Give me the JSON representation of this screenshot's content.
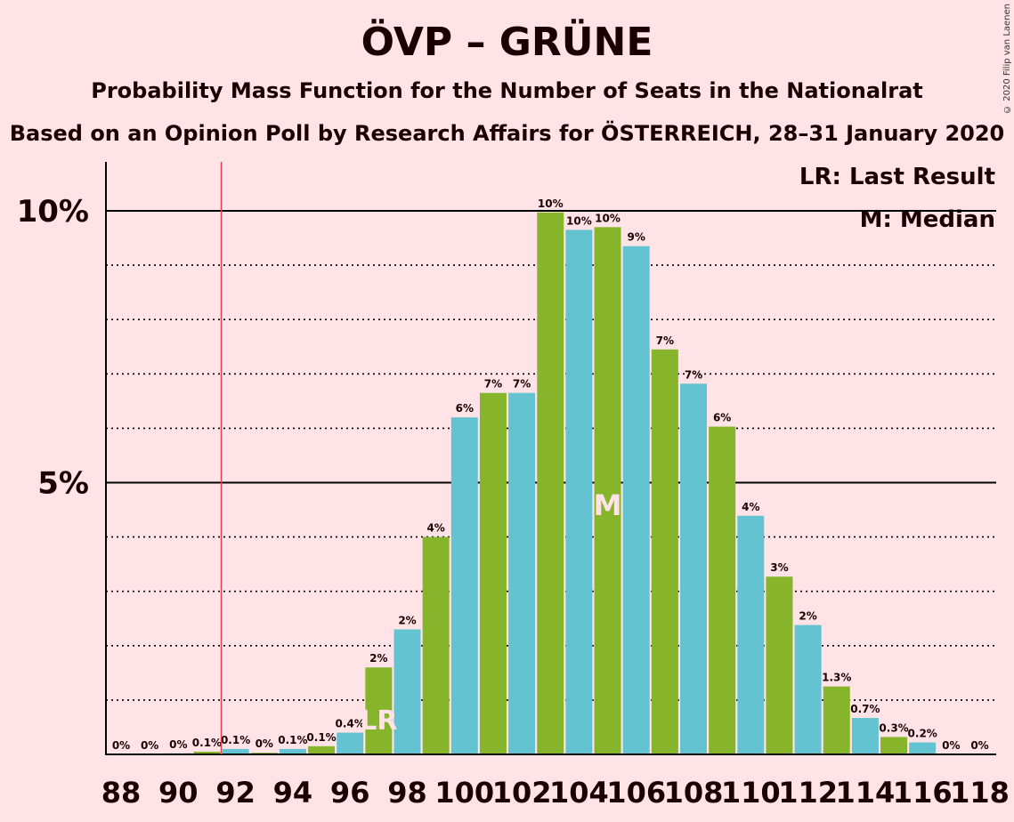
{
  "title": "ÖVP – GRÜNE",
  "subtitle": "Probability Mass Function for the Number of Seats in the Nationalrat",
  "subtitle2": "Based on an Opinion Poll by Research Affairs for ÖSTERREICH, 28–31 January 2020",
  "copyright": "© 2020 Filip van Laenen",
  "legend": {
    "last_result": "LR: Last Result",
    "median": "M: Median"
  },
  "colors": {
    "background": "#FFE3E6",
    "bar_green": "#86B52C",
    "bar_cyan": "#63C3D1",
    "last_result_line": "#E04050",
    "axis": "#000000"
  },
  "chart_data": {
    "type": "bar",
    "xlabel": "",
    "ylabel": "",
    "x": [
      88,
      89,
      90,
      91,
      92,
      93,
      94,
      95,
      96,
      97,
      98,
      99,
      100,
      101,
      102,
      103,
      104,
      105,
      106,
      107,
      108,
      109,
      110,
      111,
      112,
      113,
      114,
      115,
      116,
      117,
      118
    ],
    "values": [
      0,
      0,
      0.02,
      0.05,
      0.1,
      0.03,
      0.1,
      0.15,
      0.4,
      1.6,
      2.3,
      4.0,
      6.2,
      6.65,
      6.65,
      9.97,
      9.65,
      9.7,
      9.35,
      7.45,
      6.82,
      6.03,
      4.39,
      3.27,
      2.38,
      1.25,
      0.67,
      0.32,
      0.22,
      0,
      0
    ],
    "value_labels": [
      "0%",
      "0%",
      "0%",
      "0.1%",
      "0.1%",
      "0%",
      "0.1%",
      "0.1%",
      "0.4%",
      "2%",
      "2%",
      "4%",
      "6%",
      "7%",
      "7%",
      "10%",
      "10%",
      "10%",
      "9%",
      "7%",
      "7%",
      "6%",
      "4%",
      "3%",
      "2%",
      "1.3%",
      "0.7%",
      "0.3%",
      "0.2%",
      "0%",
      "0%"
    ],
    "x_tick_labels": [
      "88",
      "90",
      "92",
      "94",
      "96",
      "98",
      "100",
      "102",
      "104",
      "106",
      "108",
      "110",
      "112",
      "114",
      "116",
      "118"
    ],
    "y_tick_labels": [
      "5%",
      "10%"
    ],
    "ylim": [
      0,
      11
    ],
    "last_result_seat": 91.5,
    "last_result_label": "LR",
    "last_result_bar": 97,
    "median_seat": 105,
    "median_label": "M",
    "grid": "dotted every 1%, solid at 5% and 10%"
  }
}
